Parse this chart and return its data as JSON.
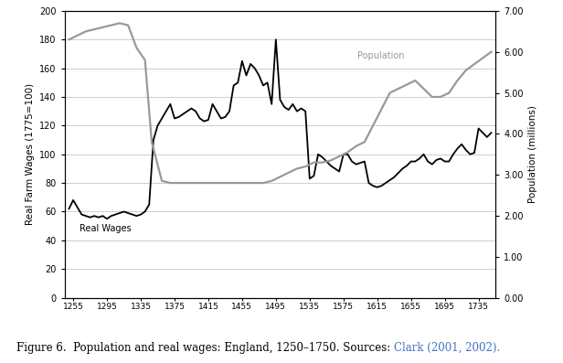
{
  "wages_years": [
    1250,
    1255,
    1260,
    1265,
    1270,
    1275,
    1280,
    1285,
    1290,
    1295,
    1300,
    1305,
    1310,
    1315,
    1320,
    1325,
    1330,
    1335,
    1340,
    1345,
    1350,
    1355,
    1360,
    1365,
    1370,
    1375,
    1380,
    1385,
    1390,
    1395,
    1400,
    1405,
    1410,
    1415,
    1420,
    1425,
    1430,
    1435,
    1440,
    1445,
    1450,
    1455,
    1460,
    1465,
    1470,
    1475,
    1480,
    1485,
    1490,
    1495,
    1500,
    1505,
    1510,
    1515,
    1520,
    1525,
    1530,
    1535,
    1540,
    1545,
    1550,
    1555,
    1560,
    1565,
    1570,
    1575,
    1580,
    1585,
    1590,
    1595,
    1600,
    1605,
    1610,
    1615,
    1620,
    1625,
    1630,
    1635,
    1640,
    1645,
    1650,
    1655,
    1660,
    1665,
    1670,
    1675,
    1680,
    1685,
    1690,
    1695,
    1700,
    1705,
    1710,
    1715,
    1720,
    1725,
    1730,
    1735,
    1740,
    1745,
    1750
  ],
  "wages_values": [
    62,
    68,
    63,
    58,
    57,
    56,
    57,
    56,
    57,
    55,
    57,
    58,
    59,
    60,
    59,
    58,
    57,
    58,
    60,
    65,
    110,
    120,
    125,
    130,
    135,
    125,
    126,
    128,
    130,
    132,
    130,
    125,
    123,
    124,
    135,
    130,
    125,
    126,
    130,
    148,
    150,
    165,
    155,
    163,
    160,
    155,
    148,
    150,
    135,
    180,
    138,
    133,
    131,
    135,
    130,
    132,
    130,
    83,
    85,
    100,
    98,
    95,
    92,
    90,
    88,
    100,
    100,
    95,
    93,
    94,
    95,
    80,
    78,
    77,
    78,
    80,
    82,
    84,
    87,
    90,
    92,
    95,
    95,
    97,
    100,
    95,
    93,
    96,
    97,
    95,
    95,
    100,
    104,
    107,
    103,
    100,
    101,
    118,
    115,
    112,
    115
  ],
  "pop_years": [
    1250,
    1260,
    1270,
    1280,
    1290,
    1300,
    1310,
    1320,
    1330,
    1340,
    1348,
    1360,
    1370,
    1380,
    1390,
    1400,
    1410,
    1420,
    1430,
    1440,
    1450,
    1460,
    1470,
    1480,
    1490,
    1500,
    1510,
    1520,
    1530,
    1540,
    1550,
    1560,
    1570,
    1580,
    1590,
    1600,
    1610,
    1620,
    1630,
    1640,
    1650,
    1660,
    1670,
    1680,
    1690,
    1700,
    1710,
    1720,
    1730,
    1740,
    1750
  ],
  "pop_values": [
    6.3,
    6.4,
    6.5,
    6.55,
    6.6,
    6.65,
    6.7,
    6.65,
    6.1,
    5.8,
    3.8,
    2.85,
    2.8,
    2.8,
    2.8,
    2.8,
    2.8,
    2.8,
    2.8,
    2.8,
    2.8,
    2.8,
    2.8,
    2.8,
    2.85,
    2.95,
    3.05,
    3.15,
    3.2,
    3.3,
    3.3,
    3.35,
    3.45,
    3.55,
    3.7,
    3.8,
    4.2,
    4.6,
    5.0,
    5.1,
    5.2,
    5.3,
    5.1,
    4.9,
    4.9,
    5.0,
    5.3,
    5.55,
    5.7,
    5.85,
    6.0
  ],
  "wages_color": "#000000",
  "pop_color": "#999999",
  "wages_label": "Real Wages",
  "pop_label": "Population",
  "xlabel_ticks": [
    1255,
    1295,
    1335,
    1375,
    1415,
    1455,
    1495,
    1535,
    1575,
    1615,
    1655,
    1695,
    1735
  ],
  "ylabel_left": "Real Farm Wages (1775=100)",
  "ylabel_right": "Population (millions)",
  "ylim_left": [
    0,
    200
  ],
  "ylim_right": [
    0.0,
    7.0
  ],
  "yticks_left": [
    0,
    20,
    40,
    60,
    80,
    100,
    120,
    140,
    160,
    180,
    200
  ],
  "yticks_right": [
    0.0,
    1.0,
    2.0,
    3.0,
    4.0,
    5.0,
    6.0,
    7.0
  ],
  "caption_plain": "Figure 6.  Population and real wages: England, 1250–1750. Sources: ",
  "caption_link": "Clark (2001, 2002).",
  "caption_color": "#000000",
  "caption_link_color": "#4472c4",
  "background_color": "#ffffff",
  "gridcolor": "#bbbbbb",
  "xlim": [
    1245,
    1755
  ]
}
